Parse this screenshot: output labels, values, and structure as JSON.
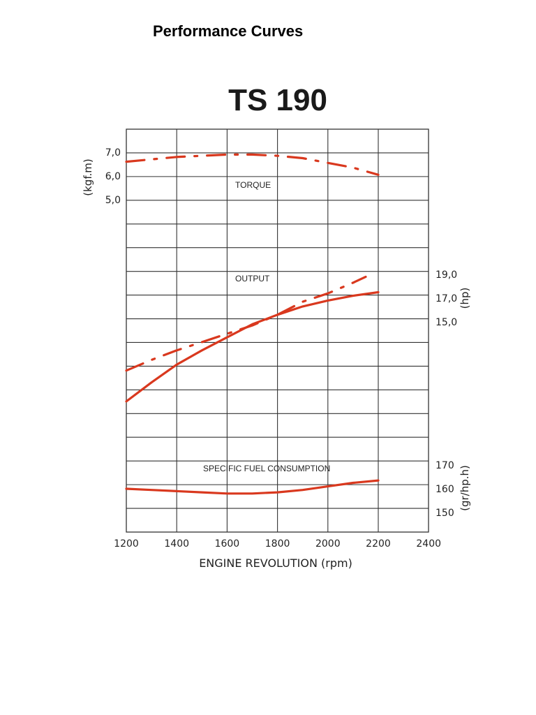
{
  "page": {
    "title": "Performance Curves"
  },
  "chart_data": {
    "type": "line",
    "title": "TS 190",
    "xlabel": "ENGINE REVOLUTION (rpm)",
    "xlim": [
      1200,
      2400
    ],
    "x_ticks": [
      "1200",
      "1400",
      "1600",
      "1800",
      "2000",
      "2200",
      "2400"
    ],
    "grid": true,
    "colors": {
      "curve": "#d9381e",
      "grid": "#333333",
      "title": "#1a1a1a"
    },
    "axes": {
      "torque": {
        "label": "(kgf.m)",
        "ticks": [
          "7,0",
          "6,0",
          "5,0"
        ],
        "tick_values": [
          7.0,
          6.0,
          5.0
        ]
      },
      "output": {
        "label": "(hp)",
        "ticks": [
          "19,0",
          "17,0",
          "15,0"
        ],
        "tick_values": [
          19.0,
          17.0,
          15.0
        ]
      },
      "sfc": {
        "label": "(gr/hp.h)",
        "ticks": [
          "170",
          "160",
          "150"
        ],
        "tick_values": [
          170,
          160,
          150
        ]
      }
    },
    "annotations": [
      "TORQUE",
      "OUTPUT",
      "SPECIFIC FUEL CONSUMPTION"
    ],
    "series": [
      {
        "axis": "torque",
        "style": "dash-dot",
        "x": [
          1200,
          1300,
          1400,
          1500,
          1600,
          1700,
          1800,
          1900,
          2000,
          2100,
          2200
        ],
        "values": [
          6.6,
          6.7,
          6.8,
          6.85,
          6.9,
          6.9,
          6.85,
          6.75,
          6.55,
          6.35,
          6.05
        ]
      },
      {
        "axis": "output",
        "style": "dash-dot",
        "x": [
          1200,
          1300,
          1400,
          1500,
          1600,
          1700,
          1800,
          1900,
          2000,
          2100,
          2150
        ],
        "values": [
          10.9,
          11.8,
          12.6,
          13.3,
          14.0,
          14.7,
          15.6,
          16.7,
          17.4,
          18.3,
          18.8
        ]
      },
      {
        "axis": "output",
        "style": "solid",
        "x": [
          1200,
          1300,
          1400,
          1500,
          1600,
          1700,
          1800,
          1900,
          2000,
          2100,
          2200
        ],
        "values": [
          8.3,
          9.9,
          11.4,
          12.6,
          13.7,
          14.8,
          15.6,
          16.3,
          16.8,
          17.2,
          17.5
        ]
      },
      {
        "axis": "sfc",
        "style": "solid",
        "x": [
          1200,
          1300,
          1400,
          1500,
          1600,
          1700,
          1800,
          1900,
          2000,
          2100,
          2200
        ],
        "values": [
          160.0,
          159.5,
          159.0,
          158.5,
          158.0,
          158.0,
          158.5,
          159.5,
          161.0,
          162.5,
          163.5
        ]
      }
    ]
  }
}
